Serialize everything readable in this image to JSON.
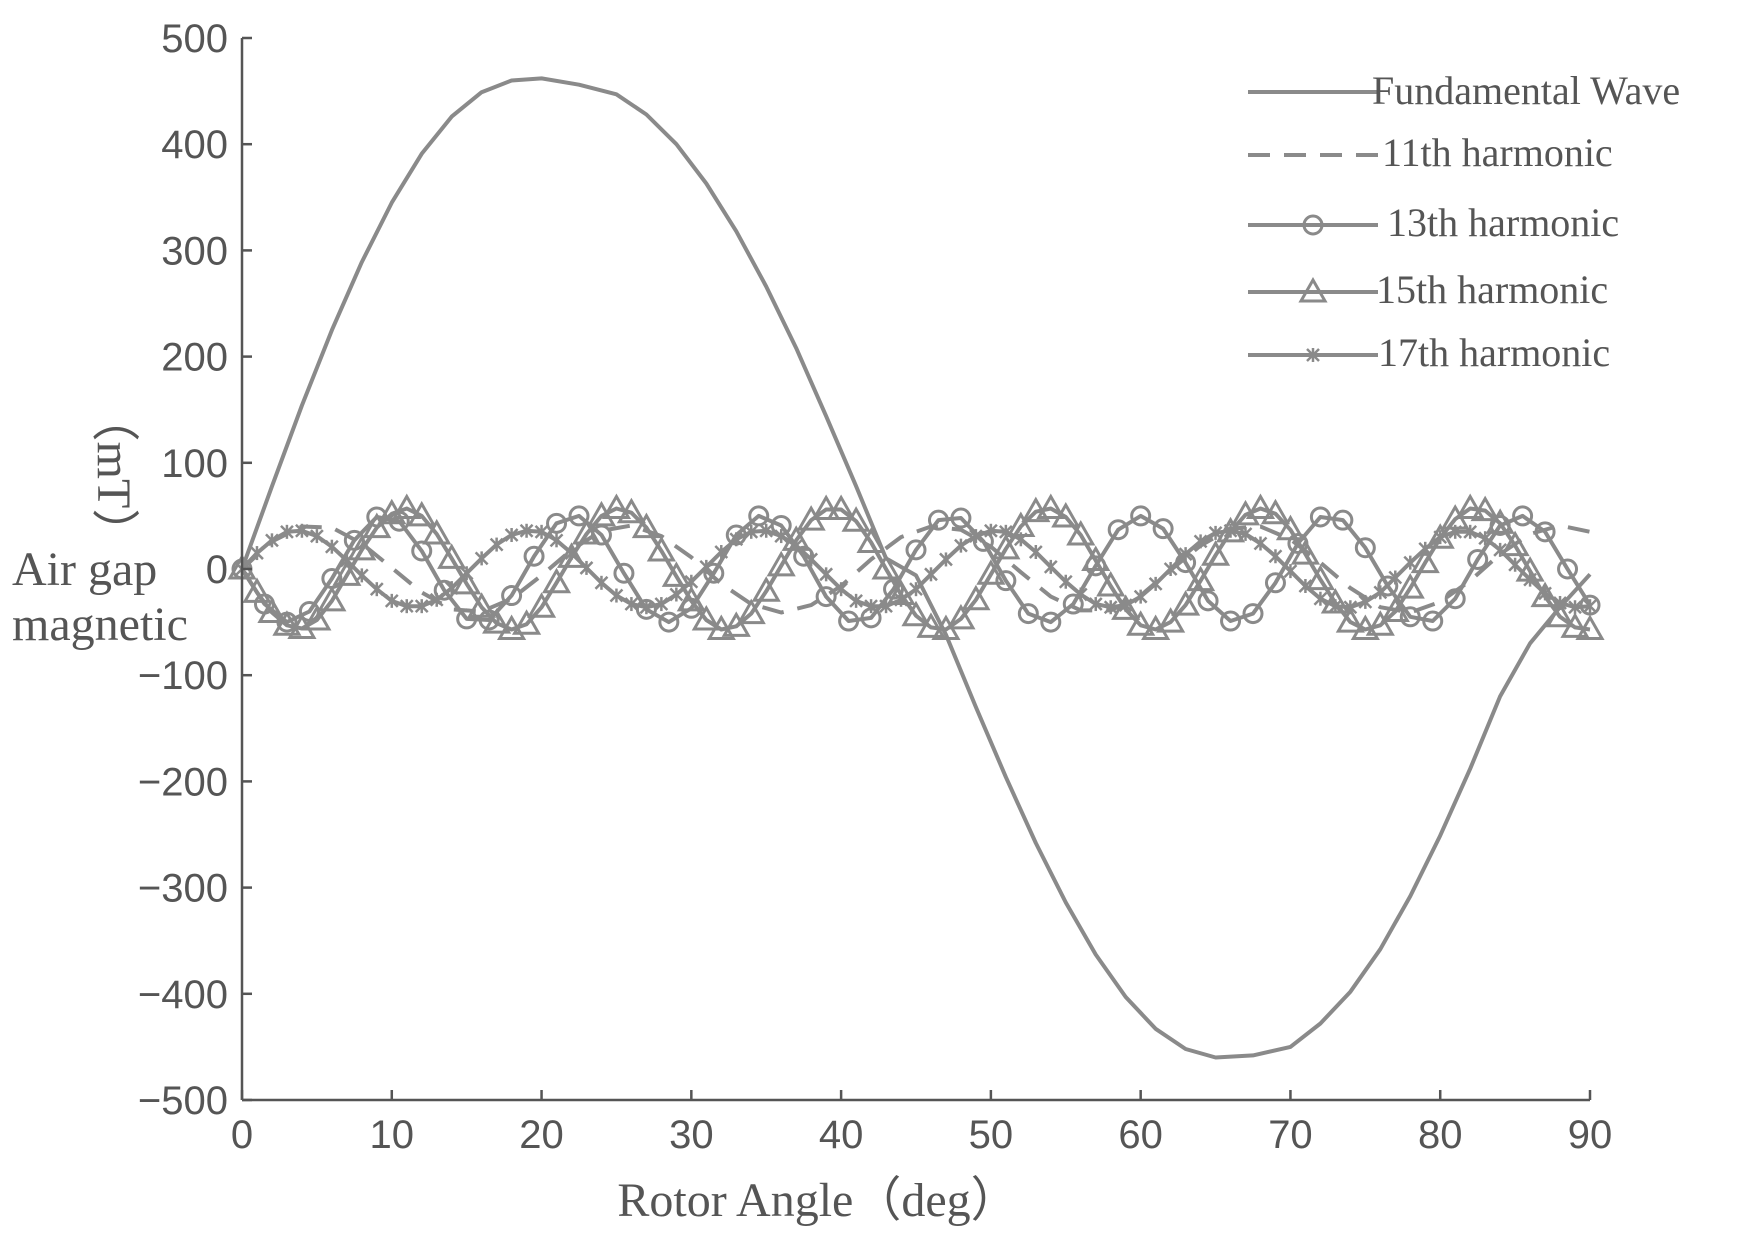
{
  "colors": {
    "series": "#8a8a8a",
    "axis": "#555555",
    "text": "#555555",
    "background": "#ffffff"
  },
  "chart_data": {
    "type": "line",
    "title": "",
    "xlabel": "Rotor Angle（deg）",
    "ylabel_lines": [
      "Air gap",
      "magnetic"
    ],
    "ylabel_unit": "（mT）",
    "xlim": [
      0,
      90
    ],
    "ylim": [
      -500,
      500
    ],
    "x_ticks": [
      0,
      10,
      20,
      30,
      40,
      50,
      60,
      70,
      80,
      90
    ],
    "y_ticks": [
      500,
      400,
      300,
      200,
      100,
      0,
      -100,
      -200,
      -300,
      -400,
      -500
    ],
    "x_tick_labels": [
      "0",
      "10",
      "20",
      "30",
      "40",
      "50",
      "60",
      "70",
      "80",
      "90"
    ],
    "y_tick_labels": [
      "500",
      "400",
      "300",
      "200",
      "100",
      "0",
      "−100",
      "−200",
      "−300",
      "−400",
      "−500"
    ],
    "grid": false,
    "legend_position": "top-right",
    "series": [
      {
        "name": "Fundamental Wave",
        "style": "solid",
        "marker": "none",
        "x": [
          0,
          2,
          4,
          6,
          8,
          10,
          12,
          14,
          16,
          18,
          20,
          22.5,
          25,
          27,
          29,
          31,
          33,
          35,
          37,
          39,
          41,
          43,
          45,
          47,
          49,
          51,
          53,
          55,
          57,
          59,
          61,
          63,
          65,
          67.5,
          70,
          72,
          74,
          76,
          78,
          80,
          82,
          84,
          86,
          88,
          90
        ],
        "y": [
          0,
          78,
          154,
          225,
          289,
          345,
          391,
          426,
          449,
          460,
          462,
          456,
          447,
          428,
          400,
          363,
          318,
          266,
          208,
          144,
          78,
          10,
          -6,
          -62,
          -130,
          -196,
          -258,
          -314,
          -363,
          -403,
          -433,
          -452,
          -460,
          -458,
          -450,
          -428,
          -398,
          -358,
          -308,
          -251,
          -188,
          -120,
          -70,
          -36,
          -5
        ]
      },
      {
        "name": "11th harmonic",
        "style": "dashed",
        "marker": "none",
        "x": [
          0,
          2,
          4,
          6,
          8,
          10,
          12,
          14,
          16,
          18,
          20,
          22,
          24,
          26,
          28,
          30,
          32,
          34,
          36,
          38,
          40,
          42,
          44,
          46,
          48,
          50,
          52,
          54,
          56,
          58,
          60,
          62,
          64,
          66,
          68,
          70,
          72,
          74,
          76,
          78,
          80,
          82,
          84,
          86,
          88,
          90
        ],
        "y": [
          0,
          26,
          40,
          39,
          24,
          1,
          -22,
          -38,
          -40,
          -28,
          -6,
          18,
          36,
          41,
          31,
          11,
          -14,
          -33,
          -41,
          -34,
          -16,
          9,
          30,
          40,
          37,
          21,
          -3,
          -26,
          -39,
          -39,
          -25,
          -1,
          22,
          38,
          40,
          28,
          6,
          -18,
          -36,
          -41,
          -31,
          -11,
          14,
          33,
          41,
          35
        ]
      },
      {
        "name": "13th harmonic",
        "style": "solid",
        "marker": "circle",
        "x": [
          0,
          1.5,
          3,
          4.5,
          6,
          7.5,
          9,
          10.5,
          12,
          13.5,
          15,
          16.5,
          18,
          19.5,
          21,
          22.5,
          24,
          25.5,
          27,
          28.5,
          30,
          31.5,
          33,
          34.5,
          36,
          37.5,
          39,
          40.5,
          42,
          43.5,
          45,
          46.5,
          48,
          49.5,
          51,
          52.5,
          54,
          55.5,
          57,
          58.5,
          60,
          61.5,
          63,
          64.5,
          66,
          67.5,
          69,
          70.5,
          72,
          73.5,
          75,
          76.5,
          78,
          79.5,
          81,
          82.5,
          84,
          85.5,
          87,
          88.5,
          90
        ],
        "y": [
          0,
          -33,
          -50,
          -40,
          -9,
          27,
          49,
          45,
          17,
          -20,
          -47,
          -48,
          -25,
          12,
          43,
          50,
          32,
          -4,
          -38,
          -50,
          -37,
          -4,
          32,
          50,
          41,
          12,
          -26,
          -49,
          -46,
          -19,
          18,
          46,
          48,
          26,
          -11,
          -42,
          -50,
          -33,
          3,
          37,
          50,
          38,
          6,
          -30,
          -49,
          -42,
          -13,
          24,
          49,
          46,
          20,
          -16,
          -45,
          -49,
          -28,
          9,
          41,
          50,
          35,
          0,
          -34
        ]
      },
      {
        "name": "15th harmonic",
        "style": "solid",
        "marker": "triangle",
        "x": [
          0,
          1,
          2,
          3,
          4,
          5,
          6,
          7,
          8,
          9,
          10,
          11,
          12,
          13,
          14,
          15,
          16,
          17,
          18,
          19,
          20,
          21,
          22,
          23,
          24,
          25,
          26,
          27,
          28,
          29,
          30,
          31,
          32,
          33,
          34,
          35,
          36,
          37,
          38,
          39,
          40,
          41,
          42,
          43,
          44,
          45,
          46,
          47,
          48,
          49,
          50,
          51,
          52,
          53,
          54,
          55,
          56,
          57,
          58,
          59,
          60,
          61,
          62,
          63,
          64,
          65,
          66,
          67,
          68,
          69,
          70,
          71,
          72,
          73,
          74,
          75,
          76,
          77,
          78,
          79,
          80,
          81,
          82,
          83,
          84,
          85,
          86,
          87,
          88,
          89,
          90
        ],
        "y": [
          0,
          -22,
          -41,
          -53,
          -56,
          -48,
          -30,
          -6,
          18,
          39,
          52,
          57,
          50,
          33,
          10,
          -14,
          -36,
          -51,
          -57,
          -52,
          -36,
          -13,
          11,
          33,
          50,
          57,
          53,
          39,
          17,
          -7,
          -30,
          -48,
          -57,
          -54,
          -42,
          -21,
          3,
          27,
          46,
          56,
          56,
          45,
          25,
          0,
          -24,
          -44,
          -55,
          -57,
          -47,
          -29,
          -5,
          19,
          40,
          54,
          57,
          49,
          32,
          8,
          -16,
          -38,
          -53,
          -57,
          -50,
          -34,
          -11,
          13,
          35,
          51,
          57,
          52,
          37,
          14,
          -10,
          -32,
          -50,
          -57,
          -53,
          -40,
          -18,
          6,
          29,
          47,
          57,
          55,
          43,
          22,
          -2,
          -26,
          -45,
          -55,
          -57
        ]
      },
      {
        "name": "17th harmonic",
        "style": "solid",
        "marker": "star",
        "x": [
          0,
          1,
          2,
          3,
          4,
          5,
          6,
          7,
          8,
          9,
          10,
          11,
          12,
          13,
          14,
          15,
          16,
          17,
          18,
          19,
          20,
          21,
          22,
          23,
          24,
          25,
          26,
          27,
          28,
          29,
          30,
          31,
          32,
          33,
          34,
          35,
          36,
          37,
          38,
          39,
          40,
          41,
          42,
          43,
          44,
          45,
          46,
          47,
          48,
          49,
          50,
          51,
          52,
          53,
          54,
          55,
          56,
          57,
          58,
          59,
          60,
          61,
          62,
          63,
          64,
          65,
          66,
          67,
          68,
          69,
          70,
          71,
          72,
          73,
          74,
          75,
          76,
          77,
          78,
          79,
          80,
          81,
          82,
          83,
          84,
          85,
          86,
          87,
          88,
          89,
          90
        ],
        "y": [
          0,
          15,
          27,
          35,
          36,
          31,
          21,
          8,
          -6,
          -19,
          -30,
          -35,
          -35,
          -29,
          -18,
          -4,
          10,
          23,
          32,
          36,
          35,
          27,
          15,
          1,
          -13,
          -25,
          -33,
          -36,
          -33,
          -24,
          -12,
          2,
          16,
          28,
          35,
          36,
          31,
          22,
          9,
          -5,
          -19,
          -30,
          -35,
          -35,
          -29,
          -19,
          -5,
          9,
          22,
          31,
          36,
          35,
          28,
          16,
          2,
          -12,
          -24,
          -33,
          -36,
          -34,
          -26,
          -14,
          0,
          14,
          26,
          34,
          36,
          33,
          24,
          12,
          -2,
          -16,
          -28,
          -35,
          -36,
          -31,
          -22,
          -8,
          6,
          19,
          30,
          35,
          35,
          29,
          18,
          4,
          -10,
          -23,
          -32,
          -36,
          -35
        ]
      }
    ]
  }
}
